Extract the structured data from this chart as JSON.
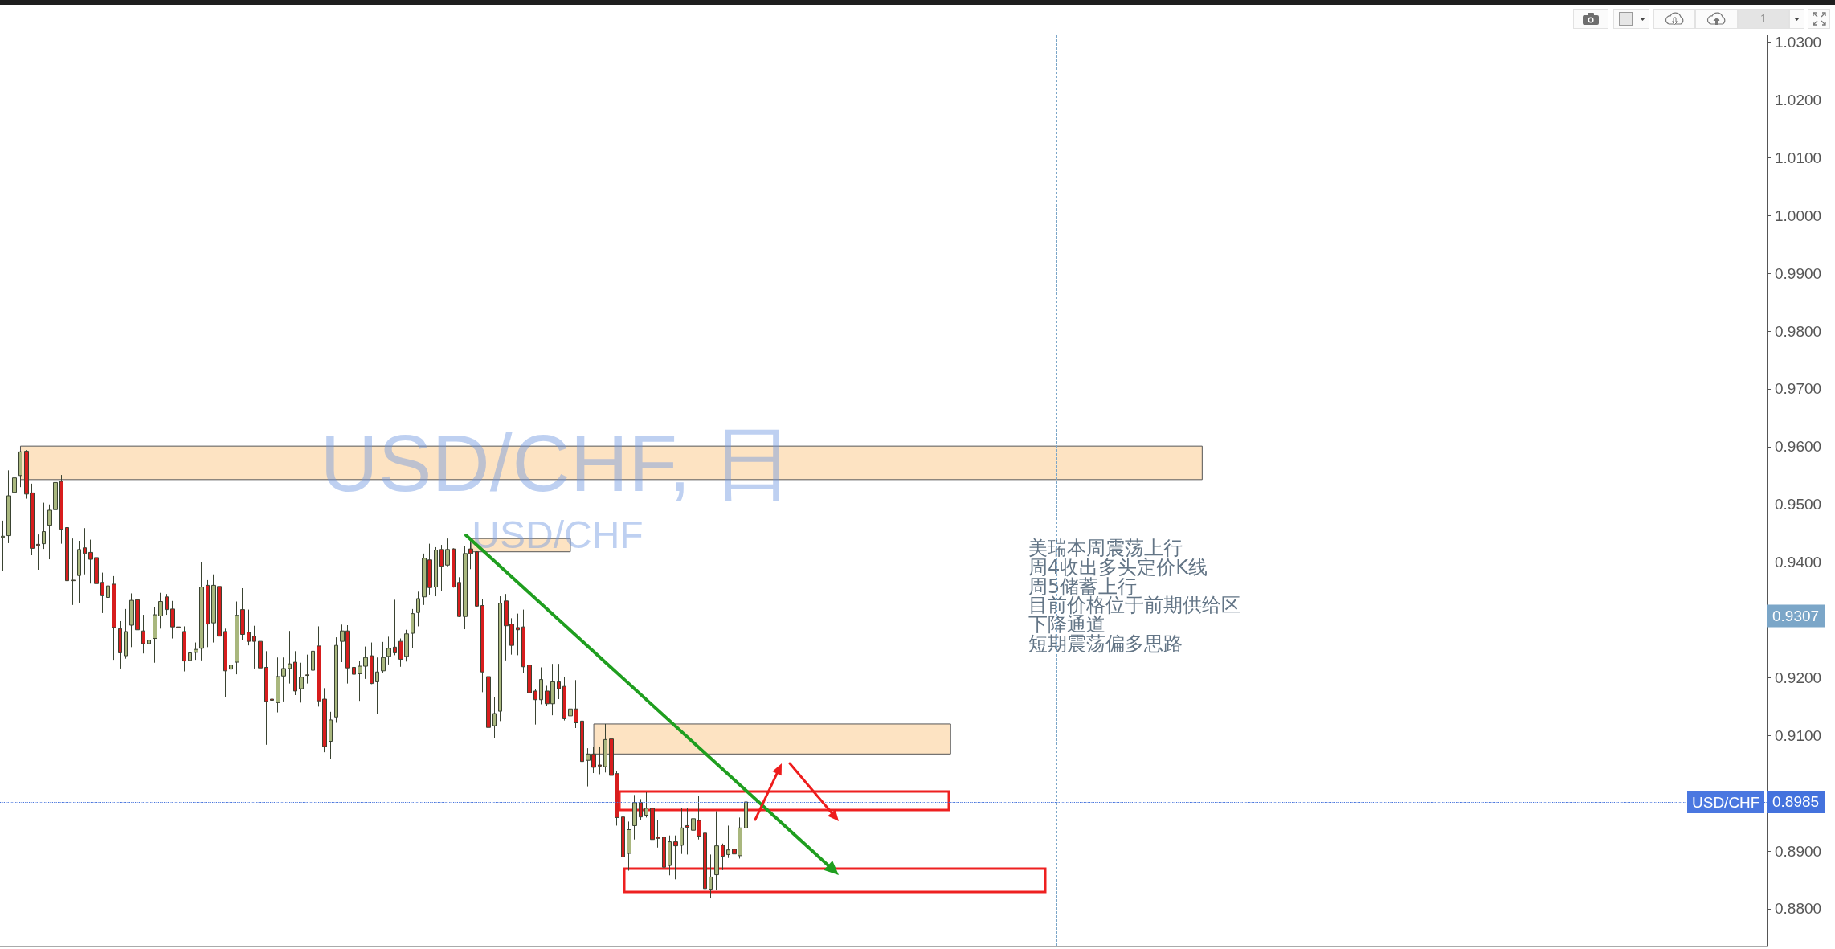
{
  "chart_data": {
    "type": "candlestick",
    "title": "USD/CHF, 日",
    "subtitle": "USD/CHF",
    "annotations": [
      "美瑞本周震荡上行",
      "周4收出多头定价K线",
      "周5储蓄上行",
      "目前价格位于前期供给区",
      "下降通道",
      "短期震荡偏多思路",
      {
        "text": "USD/CHF",
        "y": 0.8985
      },
      "1"
    ],
    "categories": [
      null,
      null,
      null,
      null,
      null,
      null,
      null,
      null,
      null,
      null,
      null,
      null,
      null,
      null,
      null,
      null,
      null,
      null,
      null,
      null,
      null,
      null,
      null,
      null,
      null,
      null,
      null,
      null,
      null,
      null,
      null,
      null,
      null,
      null,
      null,
      null,
      null,
      null,
      null,
      null,
      null,
      null,
      null,
      null,
      null,
      null,
      null,
      null,
      null,
      null,
      null,
      null,
      null,
      null,
      null,
      null,
      null,
      null,
      null,
      null,
      null,
      null,
      null,
      null,
      null,
      null,
      null,
      null,
      null,
      null,
      null,
      null,
      null,
      null,
      null,
      null,
      null,
      null,
      null,
      null,
      null,
      null,
      null,
      null,
      null,
      null,
      null,
      null,
      null,
      null,
      null,
      null,
      null,
      null,
      null,
      null,
      null,
      null,
      null,
      null,
      null,
      null,
      null,
      null,
      null,
      null,
      null,
      null,
      null,
      null,
      null,
      null,
      null,
      null,
      null,
      null,
      null,
      null,
      null,
      null,
      null,
      null,
      null,
      null,
      null,
      null,
      null,
      null,
      null,
      null,
      null,
      null,
      null,
      null,
      null,
      null,
      null,
      null,
      null,
      null,
      null,
      null,
      null,
      null,
      null,
      null,
      null,
      null,
      null,
      null,
      null,
      null,
      null,
      null,
      null,
      null,
      null,
      null,
      null,
      null,
      null,
      null,
      null,
      null,
      null,
      null,
      null,
      null,
      null,
      null,
      null,
      null,
      null,
      null,
      null,
      null,
      null,
      null,
      null,
      null,
      null,
      null,
      null,
      null,
      null,
      null,
      null,
      null,
      null,
      null,
      null,
      null,
      null,
      null,
      null,
      null,
      null,
      null,
      null,
      null,
      null,
      null,
      null,
      null,
      null,
      null,
      null,
      null,
      null,
      null,
      null,
      null,
      null,
      null,
      null,
      null,
      null,
      null,
      null,
      null,
      null,
      null,
      null,
      null,
      null,
      null,
      null,
      null,
      null,
      null,
      null,
      null,
      null,
      null,
      null,
      null,
      null,
      null,
      null,
      null,
      null,
      null,
      null,
      null,
      null,
      null,
      null,
      null,
      null,
      null,
      null,
      null,
      null,
      null,
      null,
      null,
      null,
      null,
      null,
      null,
      null,
      null,
      null,
      null,
      null,
      null,
      null,
      null,
      null,
      null,
      null,
      null,
      null,
      null,
      null,
      null,
      null,
      null,
      null,
      null,
      null,
      null,
      null,
      null,
      null,
      null,
      null,
      null,
      null,
      null,
      null,
      null,
      null,
      null,
      null,
      null,
      null,
      null,
      null,
      null,
      null,
      null
    ],
    "series": [
      {
        "ohlc": [
          [
            0.9443,
            0.9472,
            0.9385,
            0.9445
          ],
          [
            0.9446,
            0.9559,
            0.9433,
            0.9515
          ],
          [
            0.9521,
            0.9552,
            0.9498,
            0.9546
          ],
          [
            0.955,
            0.9592,
            0.953,
            0.9591
          ],
          [
            0.9592,
            0.9594,
            0.951,
            0.9518
          ],
          [
            0.952,
            0.9536,
            0.9412,
            0.9424
          ],
          [
            0.9431,
            0.9448,
            0.9387,
            0.9429
          ],
          [
            0.9432,
            0.9503,
            0.9423,
            0.9453
          ],
          [
            0.9464,
            0.95,
            0.9405,
            0.949
          ],
          [
            0.9491,
            0.9549,
            0.9461,
            0.9538
          ],
          [
            0.954,
            0.9551,
            0.9432,
            0.9457
          ],
          [
            0.946,
            0.9462,
            0.9365,
            0.9368
          ],
          [
            0.9369,
            0.9441,
            0.9326,
            0.9368
          ],
          [
            0.9377,
            0.9437,
            0.933,
            0.9422
          ],
          [
            0.9425,
            0.9459,
            0.9379,
            0.9415
          ],
          [
            0.9417,
            0.9439,
            0.9363,
            0.9405
          ],
          [
            0.9408,
            0.9428,
            0.9344,
            0.9363
          ],
          [
            0.9365,
            0.9382,
            0.9312,
            0.9342
          ],
          [
            0.9339,
            0.9382,
            0.9313,
            0.9359
          ],
          [
            0.9362,
            0.9376,
            0.9231,
            0.9287
          ],
          [
            0.9285,
            0.9298,
            0.9216,
            0.9243
          ],
          [
            0.9238,
            0.9319,
            0.9233,
            0.928
          ],
          [
            0.9291,
            0.9346,
            0.9253,
            0.9334
          ],
          [
            0.9335,
            0.9352,
            0.928,
            0.9283
          ],
          [
            0.9281,
            0.9309,
            0.9242,
            0.9259
          ],
          [
            0.9259,
            0.929,
            0.9238,
            0.9265
          ],
          [
            0.9268,
            0.9323,
            0.9226,
            0.9309
          ],
          [
            0.9307,
            0.9347,
            0.9285,
            0.9332
          ],
          [
            0.934,
            0.9345,
            0.9309,
            0.9318
          ],
          [
            0.9319,
            0.9333,
            0.9268,
            0.9288
          ],
          [
            0.9288,
            0.9308,
            0.9245,
            0.9287
          ],
          [
            0.928,
            0.9289,
            0.9211,
            0.9229
          ],
          [
            0.923,
            0.9269,
            0.9201,
            0.9243
          ],
          [
            0.9244,
            0.9261,
            0.9231,
            0.9249
          ],
          [
            0.9251,
            0.94,
            0.923,
            0.9357
          ],
          [
            0.936,
            0.9369,
            0.9253,
            0.9293
          ],
          [
            0.9295,
            0.9379,
            0.9261,
            0.936
          ],
          [
            0.9358,
            0.941,
            0.927,
            0.9272
          ],
          [
            0.928,
            0.9285,
            0.9166,
            0.9212
          ],
          [
            0.9215,
            0.9254,
            0.9196,
            0.9222
          ],
          [
            0.9227,
            0.9332,
            0.9206,
            0.9308
          ],
          [
            0.9318,
            0.9355,
            0.9265,
            0.9275
          ],
          [
            0.9279,
            0.9318,
            0.9256,
            0.9263
          ],
          [
            0.9272,
            0.929,
            0.9216,
            0.9263
          ],
          [
            0.9263,
            0.9277,
            0.9187,
            0.9217
          ],
          [
            0.9218,
            0.9246,
            0.9084,
            0.9159
          ],
          [
            0.9163,
            0.9192,
            0.9146,
            0.9161
          ],
          [
            0.9157,
            0.9235,
            0.914,
            0.9202
          ],
          [
            0.9203,
            0.9235,
            0.9159,
            0.9216
          ],
          [
            0.9216,
            0.9281,
            0.919,
            0.9224
          ],
          [
            0.9227,
            0.9246,
            0.917,
            0.9177
          ],
          [
            0.9181,
            0.9226,
            0.9157,
            0.9201
          ],
          [
            0.9205,
            0.924,
            0.919,
            0.9204
          ],
          [
            0.9213,
            0.9256,
            0.918,
            0.9246
          ],
          [
            0.9255,
            0.9289,
            0.915,
            0.916
          ],
          [
            0.9163,
            0.9182,
            0.9071,
            0.9081
          ],
          [
            0.909,
            0.9141,
            0.9059,
            0.9127
          ],
          [
            0.9132,
            0.927,
            0.9122,
            0.9256
          ],
          [
            0.9263,
            0.9292,
            0.9227,
            0.9281
          ],
          [
            0.9281,
            0.9291,
            0.919,
            0.9217
          ],
          [
            0.9218,
            0.9226,
            0.9177,
            0.9206
          ],
          [
            0.9207,
            0.9229,
            0.916,
            0.922
          ],
          [
            0.922,
            0.9254,
            0.9198,
            0.9235
          ],
          [
            0.9238,
            0.9261,
            0.9189,
            0.919
          ],
          [
            0.9193,
            0.9235,
            0.9137,
            0.921
          ],
          [
            0.9212,
            0.9262,
            0.9209,
            0.9235
          ],
          [
            0.9237,
            0.9271,
            0.9223,
            0.9251
          ],
          [
            0.9253,
            0.9335,
            0.9239,
            0.9243
          ],
          [
            0.9263,
            0.9268,
            0.9219,
            0.9232
          ],
          [
            0.9237,
            0.9283,
            0.9228,
            0.9276
          ],
          [
            0.9277,
            0.9319,
            0.9252,
            0.9311
          ],
          [
            0.9313,
            0.9349,
            0.9289,
            0.9337
          ],
          [
            0.934,
            0.9415,
            0.9326,
            0.9407
          ],
          [
            0.9404,
            0.9432,
            0.9344,
            0.9356
          ],
          [
            0.9357,
            0.9426,
            0.9341,
            0.9421
          ],
          [
            0.9422,
            0.943,
            0.935,
            0.9393
          ],
          [
            0.9395,
            0.9441,
            0.9393,
            0.9422
          ],
          [
            0.9423,
            0.9424,
            0.9356,
            0.9357
          ],
          [
            0.9365,
            0.9374,
            0.9305,
            0.9306
          ],
          [
            0.9306,
            0.9428,
            0.9284,
            0.9415
          ],
          [
            0.9423,
            0.9439,
            0.9388,
            0.9415
          ],
          [
            0.9418,
            0.9419,
            0.9323,
            0.9324
          ],
          [
            0.9325,
            0.9336,
            0.9175,
            0.921
          ],
          [
            0.9202,
            0.9209,
            0.9071,
            0.9114
          ],
          [
            0.9117,
            0.9166,
            0.9096,
            0.9138
          ],
          [
            0.9142,
            0.9341,
            0.9125,
            0.9329
          ],
          [
            0.9333,
            0.9345,
            0.923,
            0.929
          ],
          [
            0.9293,
            0.9303,
            0.924,
            0.9256
          ],
          [
            0.9287,
            0.9311,
            0.9239,
            0.9283
          ],
          [
            0.9288,
            0.9318,
            0.9208,
            0.9219
          ],
          [
            0.9222,
            0.9247,
            0.9147,
            0.9174
          ],
          [
            0.9177,
            0.9181,
            0.9119,
            0.9162
          ],
          [
            0.9162,
            0.9218,
            0.9154,
            0.9197
          ],
          [
            0.9177,
            0.9186,
            0.9151,
            0.9155
          ],
          [
            0.9155,
            0.9224,
            0.9135,
            0.9193
          ],
          [
            0.9193,
            0.9224,
            0.9163,
            0.9181
          ],
          [
            0.9185,
            0.9202,
            0.9126,
            0.9129
          ],
          [
            0.9134,
            0.9158,
            0.9113,
            0.9146
          ],
          [
            0.9146,
            0.9196,
            0.9113,
            0.9122
          ],
          [
            0.9125,
            0.9143,
            0.9052,
            0.9055
          ],
          [
            0.9057,
            0.9078,
            0.9012,
            0.9068
          ],
          [
            0.9068,
            0.908,
            0.9035,
            0.9045
          ],
          [
            0.9049,
            0.9081,
            0.9033,
            0.9047
          ],
          [
            0.9046,
            0.912,
            0.9036,
            0.9093
          ],
          [
            0.9094,
            0.9099,
            0.9027,
            0.9031
          ],
          [
            0.9034,
            0.9039,
            0.8944,
            0.8958
          ],
          [
            0.8959,
            0.8974,
            0.8872,
            0.889
          ],
          [
            0.8896,
            0.8951,
            0.8866,
            0.8937
          ],
          [
            0.8944,
            0.8997,
            0.892,
            0.8984
          ],
          [
            0.8984,
            0.899,
            0.8953,
            0.8959
          ],
          [
            0.8962,
            0.9002,
            0.8958,
            0.8974
          ],
          [
            0.8974,
            0.8977,
            0.8906,
            0.892
          ],
          [
            0.8924,
            0.8953,
            0.8906,
            0.8922
          ],
          [
            0.8924,
            0.8932,
            0.8871,
            0.8872
          ],
          [
            0.8875,
            0.8927,
            0.8858,
            0.8916
          ],
          [
            0.8916,
            0.8927,
            0.8851,
            0.8909
          ],
          [
            0.891,
            0.8975,
            0.8895,
            0.894
          ],
          [
            0.8944,
            0.8975,
            0.8894,
            0.8941
          ],
          [
            0.8936,
            0.8965,
            0.8914,
            0.8956
          ],
          [
            0.8953,
            0.8996,
            0.892,
            0.8926
          ],
          [
            0.8931,
            0.8932,
            0.8832,
            0.8835
          ],
          [
            0.8834,
            0.8894,
            0.8818,
            0.8855
          ],
          [
            0.8859,
            0.8969,
            0.8832,
            0.8909
          ],
          [
            0.891,
            0.8913,
            0.8867,
            0.8891
          ],
          [
            0.8894,
            0.8944,
            0.8888,
            0.8902
          ],
          [
            0.8903,
            0.8927,
            0.8868,
            0.8895
          ],
          [
            0.8892,
            0.8958,
            0.8887,
            0.894
          ],
          [
            0.894,
            0.8985,
            0.8895,
            0.8985
          ],
          null,
          null,
          null,
          null,
          null,
          null,
          null,
          null,
          null,
          null,
          null,
          null,
          null,
          null,
          null,
          null,
          null,
          null,
          null,
          null,
          null,
          null,
          null,
          null,
          null,
          null,
          null,
          null,
          null,
          null,
          null,
          null,
          null,
          null,
          null,
          null,
          null,
          null,
          null,
          null,
          null,
          null,
          null,
          null,
          null,
          null,
          null,
          null,
          null,
          null,
          null,
          null,
          null,
          null,
          null,
          null,
          null,
          null,
          null,
          null,
          null,
          null,
          null,
          null,
          null,
          null,
          null,
          null,
          null,
          null,
          null,
          null,
          null,
          null,
          null,
          null,
          null,
          null,
          null,
          null,
          null,
          null,
          null,
          null,
          null,
          null,
          null,
          null,
          null,
          null,
          null,
          null,
          null,
          null,
          null,
          null,
          null,
          null,
          null,
          null,
          null,
          null,
          null,
          null,
          null,
          null,
          null,
          null,
          null,
          null,
          null,
          null,
          null,
          null,
          null,
          null,
          null,
          null,
          null,
          null,
          null,
          null,
          null,
          null,
          null,
          null,
          null,
          null,
          null,
          null,
          null,
          null,
          null,
          null,
          null,
          null,
          null,
          null,
          null,
          null,
          null,
          null,
          null,
          null,
          null,
          null,
          null,
          null,
          null,
          null,
          null,
          null,
          null,
          null,
          null,
          null,
          null,
          null,
          null,
          null,
          null,
          null,
          null,
          null,
          null,
          null,
          null,
          null,
          null,
          null,
          null,
          null,
          null,
          null
        ],
        "colors": [
          "#a9b77e",
          "#a9b77e",
          "#a9b77e",
          "#a9b77e",
          "#d71d1d",
          "#d71d1d",
          "#d71d1d",
          "#a9b77e",
          "#a9b77e",
          "#a9b77e",
          "#d71d1d",
          "#d71d1d",
          "#d71d1d",
          "#a9b77e",
          "#d71d1d",
          "#d71d1d",
          "#d71d1d",
          "#d71d1d",
          "#a9b77e",
          "#d71d1d",
          "#d71d1d",
          "#a9b77e",
          "#a9b77e",
          "#d71d1d",
          "#d71d1d",
          "#a9b77e",
          "#a9b77e",
          "#a9b77e",
          "#d71d1d",
          "#d71d1d",
          "#d71d1d",
          "#d71d1d",
          "#a9b77e",
          "#a9b77e",
          "#a9b77e",
          "#d71d1d",
          "#a9b77e",
          "#d71d1d",
          "#d71d1d",
          "#a9b77e",
          "#a9b77e",
          "#d71d1d",
          "#d71d1d",
          "#d71d1d",
          "#d71d1d",
          "#d71d1d",
          "#d71d1d",
          "#a9b77e",
          "#a9b77e",
          "#a9b77e",
          "#d71d1d",
          "#a9b77e",
          "#d71d1d",
          "#a9b77e",
          "#d71d1d",
          "#d71d1d",
          "#a9b77e",
          "#a9b77e",
          "#a9b77e",
          "#d71d1d",
          "#d71d1d",
          "#a9b77e",
          "#a9b77e",
          "#d71d1d",
          "#a9b77e",
          "#a9b77e",
          "#a9b77e",
          "#d71d1d",
          "#d71d1d",
          "#a9b77e",
          "#a9b77e",
          "#a9b77e",
          "#a9b77e",
          "#d71d1d",
          "#a9b77e",
          "#d71d1d",
          "#a9b77e",
          "#d71d1d",
          "#d71d1d",
          "#a9b77e",
          "#d71d1d",
          "#d71d1d",
          "#d71d1d",
          "#d71d1d",
          "#a9b77e",
          "#a9b77e",
          "#d71d1d",
          "#d71d1d",
          "#d71d1d",
          "#d71d1d",
          "#d71d1d",
          "#d71d1d",
          "#a9b77e",
          "#d71d1d",
          "#a9b77e",
          "#d71d1d",
          "#d71d1d",
          "#a9b77e",
          "#d71d1d",
          "#d71d1d",
          "#a9b77e",
          "#d71d1d",
          "#d71d1d",
          "#a9b77e",
          "#d71d1d",
          "#d71d1d",
          "#d71d1d",
          "#a9b77e",
          "#a9b77e",
          "#d71d1d",
          "#a9b77e",
          "#d71d1d",
          "#d71d1d",
          "#d71d1d",
          "#a9b77e",
          "#d71d1d",
          "#a9b77e",
          "#d71d1d",
          "#a9b77e",
          "#d71d1d",
          "#d71d1d",
          "#a9b77e",
          "#a9b77e",
          "#d71d1d",
          "#a9b77e",
          "#d71d1d",
          "#a9b77e",
          "#a9b77e",
          null,
          null,
          null,
          null,
          null,
          null,
          null,
          null,
          null,
          null,
          null,
          null,
          null,
          null,
          null,
          null,
          null,
          null,
          null,
          null,
          null,
          null,
          null,
          null,
          null,
          null,
          null,
          null,
          null,
          null,
          null,
          null,
          null,
          null,
          null,
          null,
          null,
          null,
          null,
          null,
          null,
          null,
          null,
          null,
          null,
          null,
          null,
          null,
          null,
          null,
          null,
          null,
          null,
          null,
          null,
          null,
          null,
          null,
          null,
          null,
          null,
          null,
          null,
          null,
          null,
          null,
          null,
          null,
          null,
          null,
          null,
          null,
          null,
          null,
          null,
          null,
          null,
          null,
          null,
          null,
          null,
          null,
          null,
          null,
          null,
          null,
          null,
          null,
          null,
          null,
          null,
          null,
          null,
          null,
          null,
          null,
          null,
          null,
          null,
          null,
          null,
          null,
          null,
          null,
          null,
          null,
          null,
          null,
          null,
          null,
          null,
          null,
          null,
          null,
          null,
          null,
          null,
          null,
          null,
          null,
          null,
          null,
          null,
          null,
          null,
          null,
          null,
          null,
          null,
          null,
          null,
          null,
          null,
          null,
          null,
          null,
          null,
          null,
          null,
          null,
          null,
          null,
          null,
          null,
          null,
          null,
          null,
          null,
          null,
          null,
          null,
          null,
          null,
          null,
          null,
          null,
          null,
          null,
          null,
          null,
          null,
          null,
          null,
          null,
          null,
          null,
          null,
          null,
          null,
          null,
          null,
          null,
          null,
          null
        ]
      }
    ],
    "ylim": [
      0.8736,
      1.0312
    ],
    "yticks": [
      {
        "value": 0.88,
        "label": "0.8800"
      },
      {
        "value": 0.89,
        "label": "0.8900"
      },
      {
        "value": 0.9,
        "label": null
      },
      {
        "value": 0.91,
        "label": "0.9100"
      },
      {
        "value": 0.92,
        "label": "0.9200"
      },
      {
        "value": 0.93,
        "label": null
      },
      {
        "value": 0.94,
        "label": "0.9400"
      },
      {
        "value": 0.95,
        "label": "0.9500"
      },
      {
        "value": 0.96,
        "label": "0.9600"
      },
      {
        "value": 0.97,
        "label": "0.9700"
      },
      {
        "value": 0.98,
        "label": "0.9800"
      },
      {
        "value": 0.99,
        "label": "0.9900"
      },
      {
        "value": 1.0,
        "label": "1.0000"
      },
      {
        "value": 1.01,
        "label": "1.0100"
      },
      {
        "value": 1.02,
        "label": "1.0200"
      },
      {
        "value": 1.03,
        "label": "1.0300"
      }
    ],
    "ref_lines": [
      {
        "axis": "y",
        "value": 0.9307,
        "label": "0.9307",
        "color": "#7ba6c8",
        "line_style": "dashed"
      },
      {
        "axis": "y",
        "value": 0.8985,
        "label": "0.8985",
        "color": "#4472dd",
        "line_style": "dotted"
      }
    ],
    "bands": [
      {
        "axis": "y",
        "from": 0.9543,
        "to": 0.9601,
        "color": "#fde3c2"
      },
      {
        "axis": "y",
        "from": 0.9418,
        "to": 0.9441,
        "color": "#fde3c2"
      },
      {
        "axis": "y",
        "from": 0.9068,
        "to": 0.912,
        "color": "#fde3c2"
      }
    ],
    "tick_labels": "y"
  }
}
